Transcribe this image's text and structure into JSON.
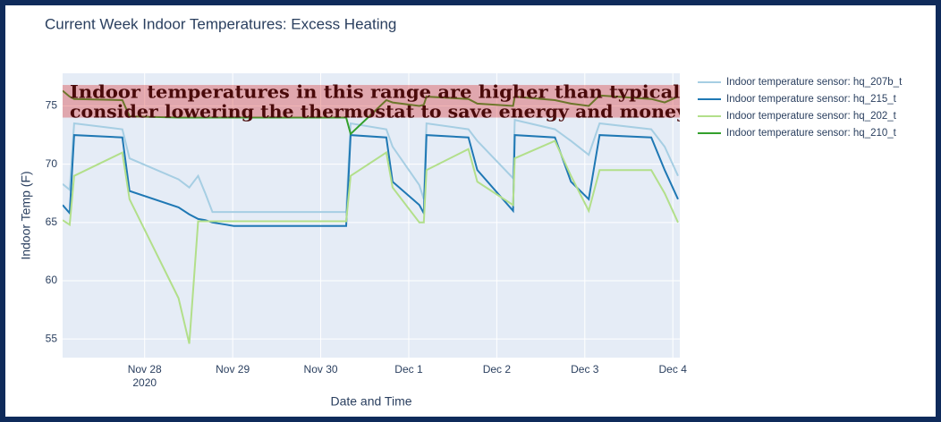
{
  "chart_data": {
    "type": "line",
    "title": "Current Week Indoor Temperatures: Excess Heating",
    "x_label": "Date and Time",
    "y_label": "Indoor Temp (F)",
    "x": [
      "2020-11-27T01:38",
      "2020-11-27T03:34",
      "2020-11-27T04:47",
      "2020-11-27T17:55",
      "2020-11-27T19:52",
      "2020-11-28T09:14",
      "2020-11-28T12:10",
      "2020-11-28T14:35",
      "2020-11-28T16:32",
      "2020-11-28T18:29",
      "2020-11-29T00:19",
      "2020-11-30T06:57",
      "2020-11-30T08:10",
      "2020-11-30T17:54",
      "2020-11-30T19:36",
      "2020-12-01T02:53",
      "2020-12-01T04:07",
      "2020-12-01T04:50",
      "2020-12-01T16:16",
      "2020-12-01T18:42",
      "2020-12-02T04:26",
      "2020-12-02T04:55",
      "2020-12-02T15:51",
      "2020-12-02T20:14",
      "2020-12-03T01:05",
      "2020-12-03T04:01",
      "2020-12-03T18:07",
      "2020-12-03T21:46",
      "2020-12-04T01:25"
    ],
    "series": [
      {
        "name": "Indoor temperature sensor: hq_207b_t",
        "color": "#a6cee3",
        "values": [
          68.3,
          67.8,
          73.5,
          73.0,
          70.5,
          68.7,
          68.0,
          69.0,
          67.5,
          65.9,
          65.9,
          65.9,
          73.5,
          73.0,
          71.5,
          68.2,
          67.0,
          73.5,
          73.0,
          72.0,
          68.8,
          73.8,
          73.0,
          72.0,
          70.8,
          73.5,
          73.0,
          71.5,
          69.0
        ]
      },
      {
        "name": "Indoor temperature sensor: hq_215_t",
        "color": "#1f78b4",
        "values": [
          66.5,
          65.8,
          72.5,
          72.3,
          67.7,
          66.3,
          65.7,
          65.3,
          65.2,
          65.0,
          64.7,
          64.7,
          72.5,
          72.3,
          68.5,
          66.5,
          65.8,
          72.5,
          72.3,
          69.5,
          66.0,
          72.5,
          72.3,
          68.5,
          67.0,
          72.5,
          72.3,
          69.5,
          67.0
        ]
      },
      {
        "name": "Indoor temperature sensor: hq_202_t",
        "color": "#b2df8a",
        "values": [
          65.2,
          64.8,
          69.0,
          71.0,
          67.0,
          58.5,
          54.6,
          65.1,
          65.1,
          65.1,
          65.1,
          65.1,
          69.0,
          71.0,
          68.0,
          65.0,
          65.0,
          69.5,
          71.3,
          68.5,
          66.5,
          70.5,
          72.0,
          69.0,
          66.0,
          69.5,
          69.5,
          67.5,
          65.0
        ]
      },
      {
        "name": "Indoor temperature sensor: hq_210_t",
        "color": "#33a02c",
        "values": [
          76.3,
          75.8,
          75.6,
          75.5,
          74.1,
          74.0,
          74.0,
          74.0,
          74.0,
          74.0,
          74.0,
          74.0,
          72.6,
          75.5,
          75.3,
          75.0,
          75.1,
          75.8,
          75.6,
          75.2,
          75.0,
          75.8,
          75.5,
          75.2,
          75.0,
          75.9,
          75.6,
          75.3,
          75.8
        ]
      }
    ],
    "xlim": [
      "2020-11-27T01:38",
      "2020-12-04T01:54"
    ],
    "xticks": [
      {
        "value": "2020-11-28T00:00",
        "label": "Nov 28\n2020"
      },
      {
        "value": "2020-11-29T00:00",
        "label": "Nov 29"
      },
      {
        "value": "2020-11-30T00:00",
        "label": "Nov 30"
      },
      {
        "value": "2020-12-01T00:00",
        "label": "Dec 1"
      },
      {
        "value": "2020-12-02T00:00",
        "label": "Dec 2"
      },
      {
        "value": "2020-12-03T00:00",
        "label": "Dec 3"
      },
      {
        "value": "2020-12-04T00:00",
        "label": "Dec 4"
      }
    ],
    "ylim": [
      53.4,
      77.8
    ],
    "yticks": [
      55,
      60,
      65,
      70,
      75
    ],
    "grid": true,
    "legend": "right",
    "band": {
      "range": [
        74,
        76.8
      ],
      "color": "rgba(214,39,40,0.35)",
      "text": [
        "Indoor temperatures in this range are higher than typical;",
        "consider lowering the thermostat to save energy and money"
      ]
    }
  }
}
